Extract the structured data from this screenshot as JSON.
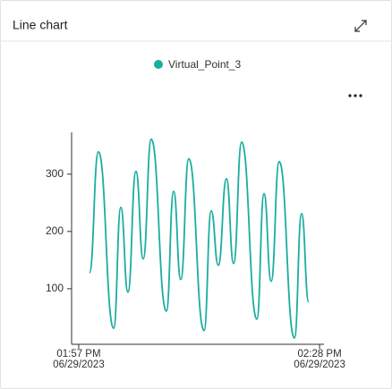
{
  "chart_data": {
    "type": "line",
    "title": "Line chart",
    "series": [
      {
        "name": "Virtual_Point_3",
        "color": "#1aada0",
        "x": [
          "2023-06-29T13:58:23",
          "2023-06-29T13:59:32",
          "2023-06-29T14:01:30",
          "2023-06-29T14:02:25",
          "2023-06-29T14:03:20",
          "2023-06-29T14:04:22",
          "2023-06-29T14:05:18",
          "2023-06-29T14:06:20",
          "2023-06-29T14:08:17",
          "2023-06-29T14:09:13",
          "2023-06-29T14:10:08",
          "2023-06-29T14:11:10",
          "2023-06-29T14:13:08",
          "2023-06-29T14:14:03",
          "2023-06-29T14:14:58",
          "2023-06-29T14:16:01",
          "2023-06-29T14:16:56",
          "2023-06-29T14:17:58",
          "2023-06-29T14:19:56",
          "2023-06-29T14:20:51",
          "2023-06-29T14:21:46",
          "2023-06-29T14:22:48",
          "2023-06-29T14:24:46",
          "2023-06-29T14:25:41",
          "2023-06-29T14:26:36"
        ],
        "values": [
          128,
          339,
          31,
          242,
          94,
          305,
          152,
          361,
          61,
          270,
          116,
          327,
          27,
          236,
          141,
          292,
          144,
          356,
          47,
          266,
          113,
          322,
          14,
          231,
          77
        ]
      }
    ],
    "xlim": [
      "2023-06-29T13:56:05",
      "2023-06-29T14:28:34"
    ],
    "xticks": [
      {
        "value": "2023-06-29T13:57:00",
        "label": "01:57 PM\n06/29/2023"
      },
      {
        "value": "2023-06-29T14:28:00",
        "label": "02:28 PM\n06/29/2023"
      }
    ],
    "ylim": [
      3,
      373
    ],
    "yticks": [
      100,
      200,
      300
    ],
    "legend": "top"
  }
}
